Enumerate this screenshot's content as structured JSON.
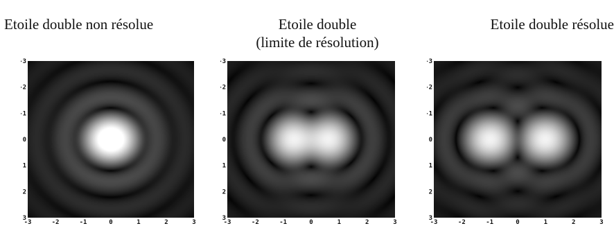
{
  "panels": [
    {
      "title_lines": [
        "Etoile double non résolue"
      ],
      "separation": 0.3,
      "yticks": [
        "-3",
        "-2",
        "-1",
        "0",
        "1",
        "2",
        "3"
      ],
      "xticks": [
        "-3",
        "-2",
        "-1",
        "0",
        "1",
        "2",
        "3"
      ]
    },
    {
      "title_lines": [
        "Etoile double",
        "(limite de résolution)"
      ],
      "separation": 1.22,
      "yticks": [
        "-3",
        "-2",
        "-1",
        "0",
        "1",
        "2",
        "3"
      ],
      "xticks": [
        "-3",
        "-2",
        "-1",
        "0",
        "1",
        "2",
        "3"
      ]
    },
    {
      "title_lines": [
        "Etoile double résolue"
      ],
      "separation": 2.0,
      "yticks": [
        "-3",
        "-2",
        "-1",
        "0",
        "1",
        "2",
        "3"
      ],
      "xticks": [
        "-3",
        "-2",
        "-1",
        "0",
        "1",
        "2",
        "3"
      ]
    }
  ]
}
